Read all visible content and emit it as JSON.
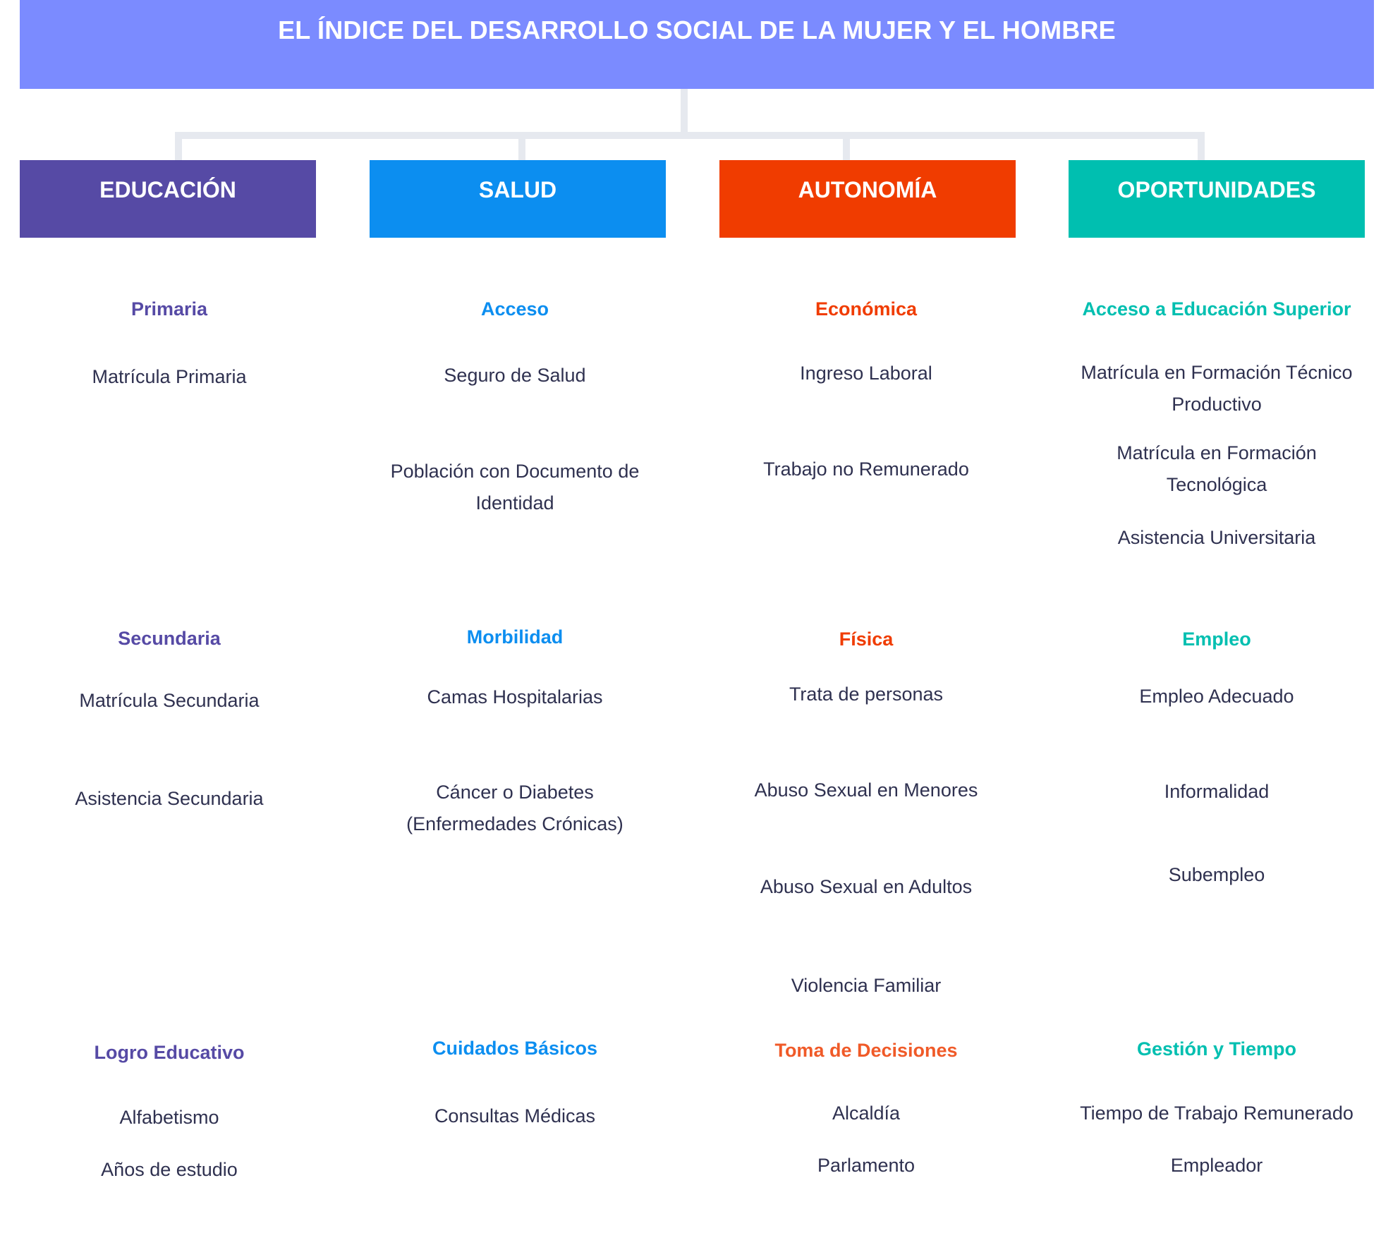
{
  "title": "EL ÍNDICE DEL DESARROLLO SOCIAL DE LA MUJER Y EL HOMBRE",
  "colors": {
    "title_bg": "#7b8bff",
    "connector": "#e6e9ef",
    "educacion": "#564aa5",
    "salud": "#0c8ef0",
    "autonomia": "#f03c00",
    "oportunidades": "#00bfb0",
    "item_text": "#2f3150"
  },
  "columns": [
    {
      "header": "EDUCACIÓN",
      "groups": [
        {
          "heading": "Primaria",
          "items": [
            "Matrícula Primaria"
          ]
        },
        {
          "heading": "Secundaria",
          "items": [
            "Matrícula Secundaria",
            "Asistencia Secundaria"
          ]
        },
        {
          "heading": "Logro Educativo",
          "items": [
            "Alfabetismo",
            "Años de estudio"
          ]
        }
      ]
    },
    {
      "header": "SALUD",
      "groups": [
        {
          "heading": "Acceso",
          "items": [
            "Seguro de Salud",
            "Población con Documento de Identidad"
          ]
        },
        {
          "heading": "Morbilidad",
          "items": [
            "Camas Hospitalarias",
            "Cáncer o Diabetes (Enfermedades Crónicas)"
          ]
        },
        {
          "heading": "Cuidados Básicos",
          "items": [
            "Consultas Médicas"
          ]
        }
      ]
    },
    {
      "header": "AUTONOMÍA",
      "groups": [
        {
          "heading": "Económica",
          "items": [
            "Ingreso Laboral",
            "Trabajo no Remunerado"
          ]
        },
        {
          "heading": "Física",
          "items": [
            "Trata de personas",
            "Abuso Sexual en Menores",
            "Abuso Sexual en Adultos",
            "Violencia Familiar"
          ]
        },
        {
          "heading": "Toma de Decisiones",
          "items": [
            "Alcaldía",
            "Parlamento"
          ]
        }
      ]
    },
    {
      "header": "OPORTUNIDADES",
      "groups": [
        {
          "heading": "Acceso a Educación Superior",
          "items": [
            "Matrícula en Formación Técnico Productivo",
            "Matrícula en Formación Tecnológica",
            "Asistencia Universitaria"
          ]
        },
        {
          "heading": "Empleo",
          "items": [
            "Empleo Adecuado",
            "Informalidad",
            "Subempleo"
          ]
        },
        {
          "heading": "Gestión y Tiempo",
          "items": [
            "Tiempo de Trabajo Remunerado",
            "Empleador"
          ]
        }
      ]
    }
  ]
}
